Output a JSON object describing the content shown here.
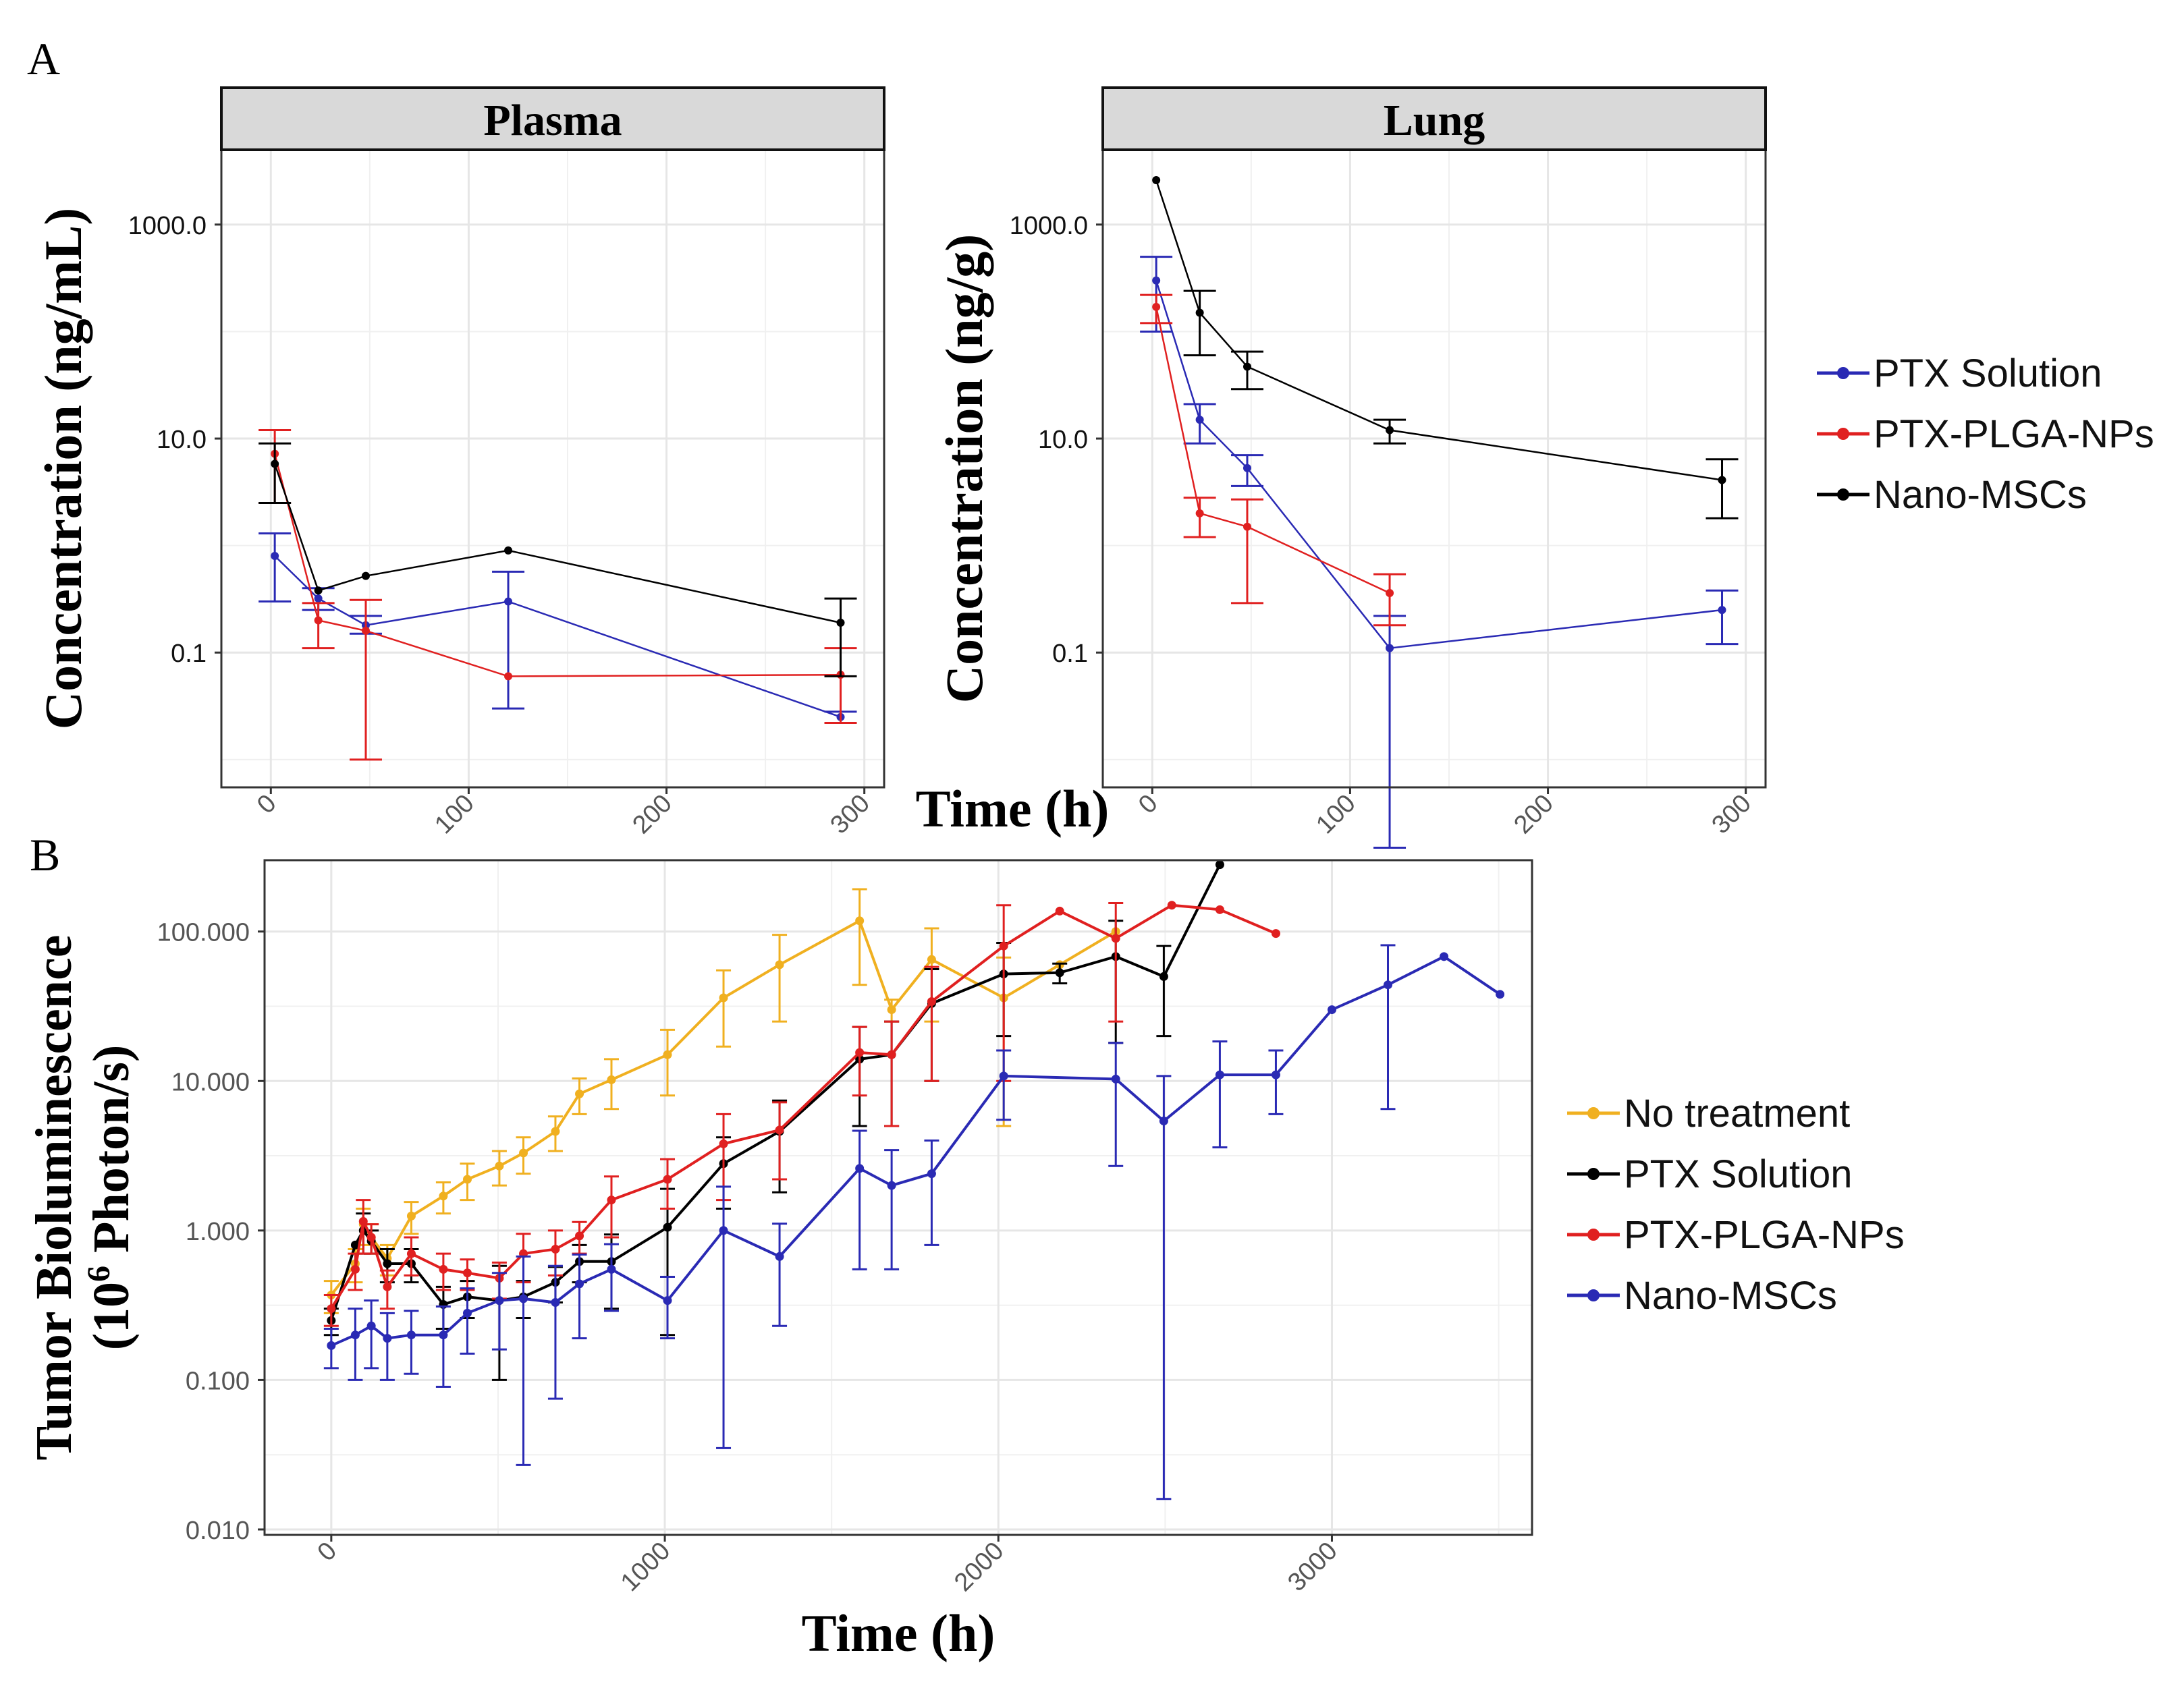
{
  "labels": {
    "panel_a": "A",
    "panel_b": "B"
  },
  "colors": {
    "ptx_solution": "#2a2ab4",
    "ptx_plga": "#e02020",
    "nano_mscs": "#000000",
    "no_treatment": "#f0b020",
    "grid": "#e6e6e6",
    "strip_bg": "#d9d9d9"
  },
  "shared": {
    "xlabel_a": "Time (h)"
  },
  "chart_data": [
    {
      "id": "plasma",
      "type": "line",
      "title": "Plasma",
      "xlabel": "Time (h)",
      "ylabel": "Concentration (ng/mL)",
      "y_scale": "log",
      "xlim": [
        -25,
        310
      ],
      "ylim": [
        0.0055,
        5000
      ],
      "xticks": [
        "0",
        "100",
        "200",
        "300"
      ],
      "yticks": [
        "0.1",
        "10.0",
        "1000.0"
      ],
      "series": [
        {
          "name": "PTX Solution",
          "color": "ptx_solution",
          "points": [
            [
              2,
              0.8,
              0.3,
              1.3
            ],
            [
              24,
              0.32,
              0.25,
              0.4
            ],
            [
              48,
              0.18,
              0.15,
              0.22
            ],
            [
              120,
              0.3,
              0.03,
              0.57
            ],
            [
              288,
              0.025,
              0.022,
              0.028
            ]
          ]
        },
        {
          "name": "PTX-PLGA-NPs",
          "color": "ptx_plga",
          "points": [
            [
              2,
              7.2,
              2.5,
              12
            ],
            [
              24,
              0.2,
              0.11,
              0.29
            ],
            [
              48,
              0.16,
              0.01,
              0.31
            ],
            [
              120,
              0.06,
              0.06,
              0.06
            ],
            [
              288,
              0.062,
              0.022,
              0.11
            ]
          ]
        },
        {
          "name": "Nano-MSCs",
          "color": "nano_mscs",
          "points": [
            [
              2,
              5.8,
              2.5,
              9
            ],
            [
              24,
              0.38,
              0.38,
              0.38
            ],
            [
              48,
              0.52,
              0.52,
              0.52
            ],
            [
              120,
              0.9,
              0.9,
              0.9
            ],
            [
              288,
              0.19,
              0.06,
              0.32
            ]
          ]
        }
      ]
    },
    {
      "id": "lung",
      "type": "line",
      "title": "Lung",
      "xlabel": "Time (h)",
      "ylabel": "Concentration (ng/g)",
      "y_scale": "log",
      "xlim": [
        -25,
        310
      ],
      "ylim": [
        0.0055,
        5000
      ],
      "xticks": [
        "0",
        "100",
        "200",
        "300"
      ],
      "yticks": [
        "0.1",
        "10.0",
        "1000.0"
      ],
      "series": [
        {
          "name": "PTX Solution",
          "color": "ptx_solution",
          "points": [
            [
              2,
              300,
              100,
              500
            ],
            [
              24,
              15,
              9,
              21
            ],
            [
              48,
              5.3,
              3.6,
              7
            ],
            [
              120,
              0.11,
              0.0015,
              0.22
            ],
            [
              288,
              0.25,
              0.12,
              0.38
            ]
          ]
        },
        {
          "name": "PTX-PLGA-NPs",
          "color": "ptx_plga",
          "points": [
            [
              2,
              170,
              120,
              220
            ],
            [
              24,
              2,
              1.2,
              2.8
            ],
            [
              48,
              1.5,
              0.29,
              2.7
            ],
            [
              120,
              0.36,
              0.18,
              0.54
            ]
          ]
        },
        {
          "name": "Nano-MSCs",
          "color": "nano_mscs",
          "points": [
            [
              2,
              2600,
              2600,
              2600
            ],
            [
              24,
              150,
              60,
              240
            ],
            [
              48,
              47,
              29,
              65
            ],
            [
              120,
              12,
              9,
              15
            ],
            [
              288,
              4.1,
              1.8,
              6.4
            ]
          ]
        }
      ]
    },
    {
      "id": "bioluminescence",
      "type": "line",
      "title": "",
      "xlabel": "Time (h)",
      "ylabel_line1": "Tumor Bioluminescence",
      "ylabel_line2_pre": "(10",
      "ylabel_line2_sup": "6",
      "ylabel_line2_post": " Photon/s)",
      "y_scale": "log",
      "xlim": [
        -200,
        3600
      ],
      "ylim": [
        0.0092,
        300
      ],
      "xticks": [
        "0",
        "1000",
        "2000",
        "3000"
      ],
      "yticks": [
        "0.010",
        "0.100",
        "1.000",
        "10.000",
        "100.000"
      ],
      "series": [
        {
          "name": "No treatment",
          "color": "no_treatment",
          "points": [
            [
              0,
              0.37,
              0.28,
              0.46
            ],
            [
              72,
              0.6,
              0.45,
              0.75
            ],
            [
              96,
              1.1,
              0.8,
              1.4
            ],
            [
              120,
              0.9,
              0.7,
              1.1
            ],
            [
              168,
              0.65,
              0.5,
              0.8
            ],
            [
              240,
              1.25,
              0.95,
              1.55
            ],
            [
              336,
              1.7,
              1.3,
              2.1
            ],
            [
              408,
              2.2,
              1.6,
              2.8
            ],
            [
              504,
              2.7,
              2,
              3.4
            ],
            [
              576,
              3.3,
              2.4,
              4.2
            ],
            [
              672,
              4.6,
              3.4,
              5.8
            ],
            [
              744,
              8.2,
              6,
              10.4
            ],
            [
              840,
              10.2,
              6.5,
              14
            ],
            [
              1008,
              15,
              8,
              22
            ],
            [
              1176,
              36,
              17,
              55
            ],
            [
              1344,
              60,
              25,
              95
            ],
            [
              1584,
              118,
              44,
              192
            ],
            [
              1680,
              30,
              25,
              35
            ],
            [
              1800,
              65,
              25,
              105
            ],
            [
              2016,
              36,
              5,
              67
            ],
            [
              2184,
              60,
              60,
              60
            ],
            [
              2352,
              100,
              100,
              100
            ]
          ]
        },
        {
          "name": "PTX Solution",
          "color": "nano_mscs",
          "points": [
            [
              0,
              0.25,
              0.2,
              0.3
            ],
            [
              72,
              0.8,
              0.8,
              0.8
            ],
            [
              96,
              1.0,
              0.7,
              1.3
            ],
            [
              120,
              0.85,
              0.7,
              1.0
            ],
            [
              168,
              0.6,
              0.45,
              0.75
            ],
            [
              240,
              0.6,
              0.45,
              0.75
            ],
            [
              336,
              0.32,
              0.22,
              0.42
            ],
            [
              408,
              0.36,
              0.26,
              0.46
            ],
            [
              504,
              0.34,
              0.1,
              0.58
            ],
            [
              576,
              0.36,
              0.26,
              0.46
            ],
            [
              672,
              0.45,
              0.33,
              0.57
            ],
            [
              744,
              0.62,
              0.45,
              0.8
            ],
            [
              840,
              0.62,
              0.3,
              0.94
            ],
            [
              1008,
              1.05,
              0.2,
              1.9
            ],
            [
              1176,
              2.8,
              1.4,
              4.2
            ],
            [
              1344,
              4.6,
              1.8,
              7.4
            ],
            [
              1584,
              14,
              5,
              23
            ],
            [
              1680,
              15,
              5,
              25
            ],
            [
              1800,
              33,
              10,
              56
            ],
            [
              2016,
              52,
              20,
              84
            ],
            [
              2184,
              53,
              45,
              61
            ],
            [
              2352,
              68,
              18,
              118
            ],
            [
              2496,
              50,
              20,
              80
            ],
            [
              2664,
              280,
              280,
              280
            ]
          ]
        },
        {
          "name": "PTX-PLGA-NPs",
          "color": "ptx_plga",
          "points": [
            [
              0,
              0.3,
              0.23,
              0.37
            ],
            [
              72,
              0.55,
              0.4,
              0.7
            ],
            [
              96,
              1.15,
              0.7,
              1.6
            ],
            [
              120,
              0.9,
              0.7,
              1.1
            ],
            [
              168,
              0.42,
              0.3,
              0.54
            ],
            [
              240,
              0.7,
              0.5,
              0.9
            ],
            [
              336,
              0.55,
              0.4,
              0.7
            ],
            [
              408,
              0.52,
              0.4,
              0.64
            ],
            [
              504,
              0.48,
              0.35,
              0.61
            ],
            [
              576,
              0.7,
              0.45,
              0.95
            ],
            [
              672,
              0.75,
              0.5,
              1.0
            ],
            [
              744,
              0.92,
              0.7,
              1.14
            ],
            [
              840,
              1.6,
              0.9,
              2.3
            ],
            [
              1008,
              2.2,
              1.4,
              3.0
            ],
            [
              1176,
              3.8,
              1.6,
              6
            ],
            [
              1344,
              4.7,
              2.2,
              7.2
            ],
            [
              1584,
              15.5,
              8,
              23
            ],
            [
              1680,
              15,
              5,
              25
            ],
            [
              1800,
              34,
              10,
              58
            ],
            [
              2016,
              80,
              10,
              150
            ],
            [
              2184,
              137,
              137,
              137
            ],
            [
              2352,
              90,
              25,
              155
            ],
            [
              2520,
              150,
              150,
              150
            ],
            [
              2664,
              140,
              140,
              140
            ],
            [
              2832,
              97,
              97,
              97
            ]
          ]
        },
        {
          "name": "Nano-MSCs",
          "color": "ptx_solution",
          "points": [
            [
              0,
              0.17,
              0.12,
              0.22
            ],
            [
              72,
              0.2,
              0.1,
              0.3
            ],
            [
              120,
              0.23,
              0.12,
              0.34
            ],
            [
              168,
              0.19,
              0.1,
              0.28
            ],
            [
              240,
              0.2,
              0.11,
              0.29
            ],
            [
              336,
              0.2,
              0.09,
              0.31
            ],
            [
              408,
              0.28,
              0.15,
              0.41
            ],
            [
              504,
              0.34,
              0.16,
              0.52
            ],
            [
              576,
              0.35,
              0.027,
              0.67
            ],
            [
              672,
              0.33,
              0.075,
              0.58
            ],
            [
              744,
              0.44,
              0.19,
              0.69
            ],
            [
              840,
              0.55,
              0.29,
              0.81
            ],
            [
              1008,
              0.34,
              0.19,
              0.49
            ],
            [
              1176,
              1.0,
              0.035,
              1.965
            ],
            [
              1344,
              0.67,
              0.23,
              1.11
            ],
            [
              1584,
              2.6,
              0.55,
              4.65
            ],
            [
              1680,
              2.0,
              0.55,
              3.45
            ],
            [
              1800,
              2.4,
              0.8,
              4.0
            ],
            [
              2016,
              10.8,
              5.5,
              16
            ],
            [
              2352,
              10.3,
              2.7,
              18
            ],
            [
              2496,
              5.4,
              0.016,
              10.8
            ],
            [
              2664,
              11,
              3.6,
              18.4
            ],
            [
              2832,
              11,
              6,
              16
            ],
            [
              3000,
              30,
              30,
              30
            ],
            [
              3168,
              44,
              6.5,
              81
            ],
            [
              3336,
              68,
              68,
              68
            ],
            [
              3504,
              38,
              38,
              38
            ]
          ]
        }
      ]
    }
  ]
}
